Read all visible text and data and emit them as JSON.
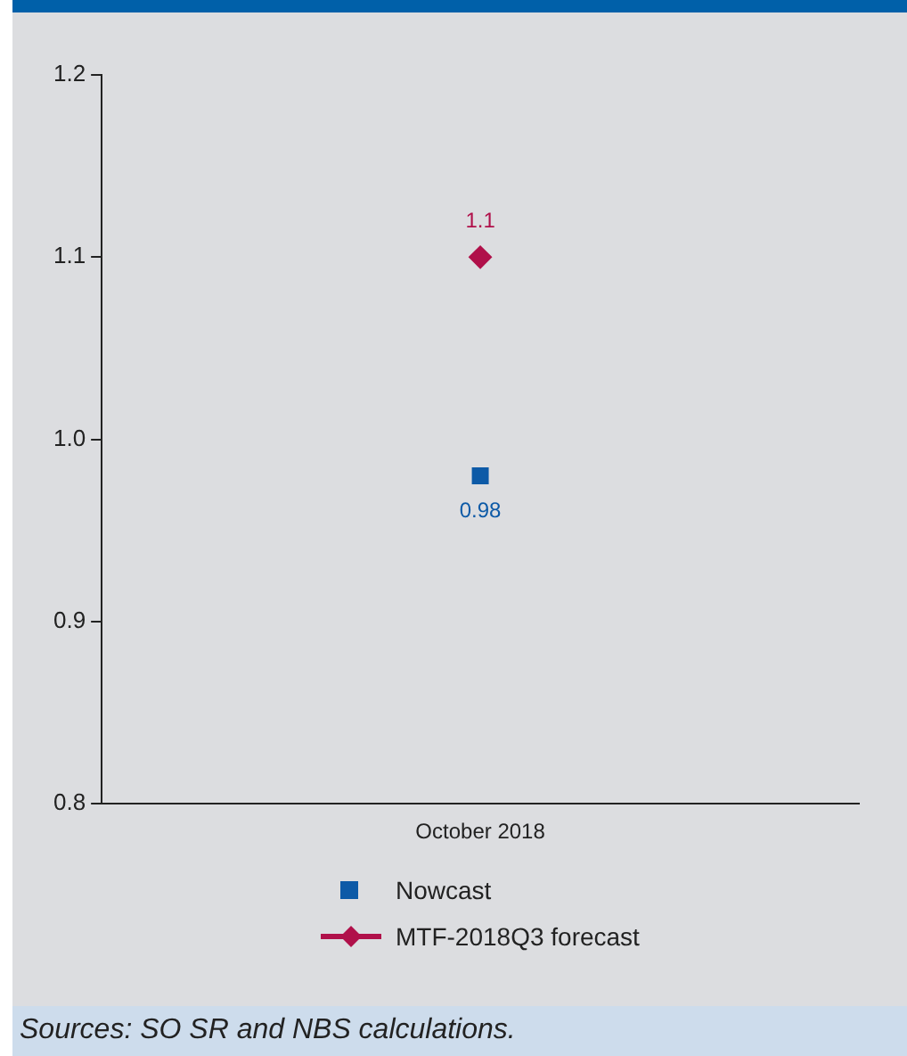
{
  "chart_data": {
    "type": "scatter",
    "categories": [
      "October 2018"
    ],
    "series": [
      {
        "name": "Nowcast",
        "color": "#0d5aa7",
        "values": [
          0.98
        ],
        "marker": "square"
      },
      {
        "name": "MTF-2018Q3 forecast",
        "color": "#b0104a",
        "values": [
          1.1
        ],
        "marker": "diamond"
      }
    ],
    "ylim": [
      0.8,
      1.2
    ],
    "yticks": [
      0.8,
      0.9,
      {
        "value": 1,
        "label": "1.0"
      },
      1.1,
      1.2
    ],
    "grid": false,
    "legend": "bottom",
    "data_labels": true,
    "annotations": [
      "Sources: SO SR and NBS calculations."
    ]
  }
}
